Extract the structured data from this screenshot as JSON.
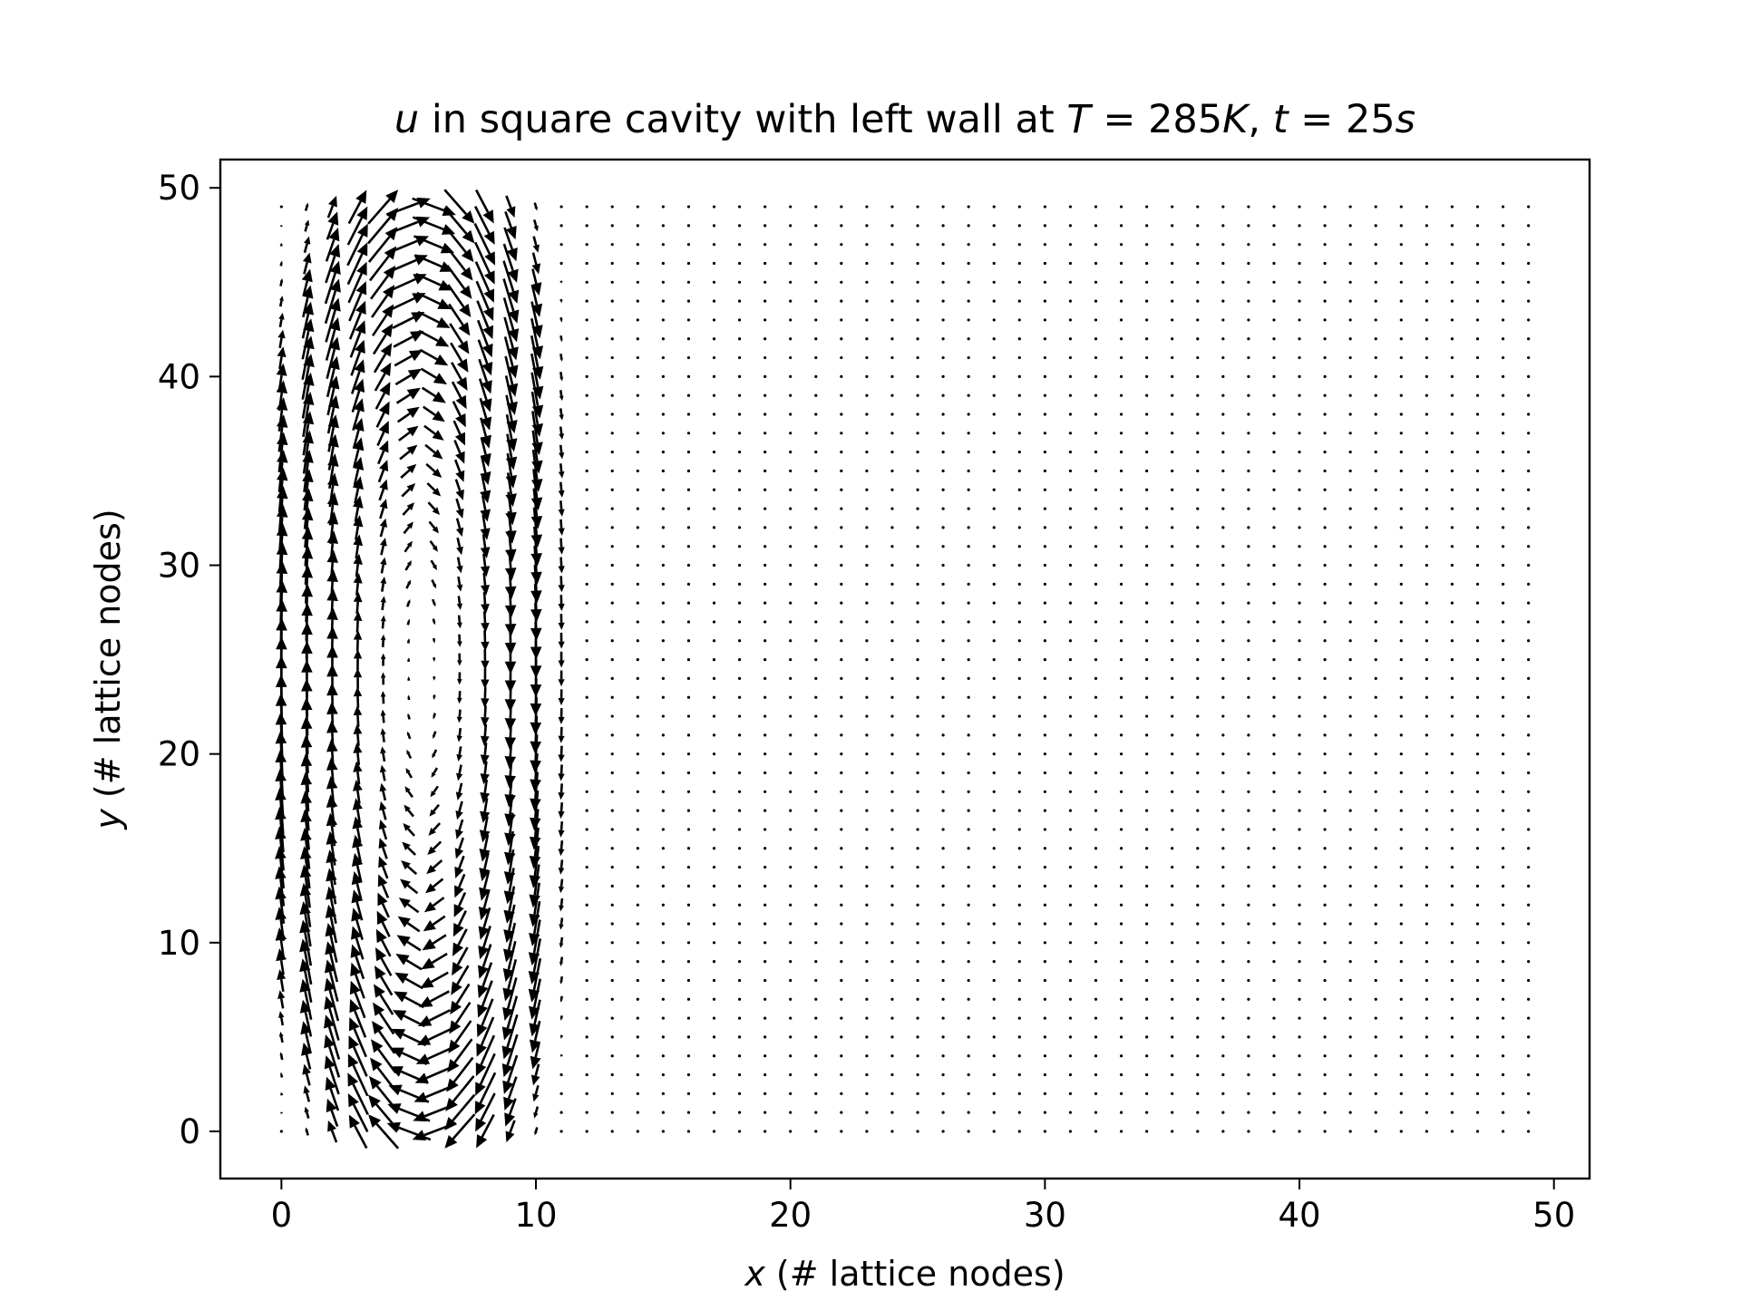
{
  "chart_data": {
    "type": "quiver",
    "title": {
      "parts": [
        {
          "text": "u",
          "italic": true
        },
        {
          "text": " in square cavity with left wall at ",
          "italic": false
        },
        {
          "text": "T",
          "italic": true
        },
        {
          "text": " = 285",
          "italic": false
        },
        {
          "text": "K",
          "italic": true
        },
        {
          "text": ", ",
          "italic": false
        },
        {
          "text": "t",
          "italic": true
        },
        {
          "text": " = 25",
          "italic": false
        },
        {
          "text": "s",
          "italic": true
        }
      ]
    },
    "xlabel": {
      "var": "x",
      "text": " (# lattice nodes)"
    },
    "ylabel": {
      "var": "y",
      "text": " (# lattice nodes)"
    },
    "xlim": [
      -2.4,
      51.4
    ],
    "ylim": [
      -2.5,
      51.5
    ],
    "xticks": [
      0,
      10,
      20,
      30,
      40,
      50
    ],
    "yticks": [
      0,
      10,
      20,
      30,
      40,
      50
    ],
    "grid": {
      "nx": 50,
      "ny": 50,
      "x0": 0,
      "y0": 0,
      "step": 1
    },
    "vortex": {
      "active_x_range": [
        0,
        11
      ],
      "center": [
        5.5,
        24.5
      ],
      "half_width": 5.8,
      "half_height": 25.0,
      "rotation": "clockwise",
      "max_arrow_length": 1.9
    },
    "grid_on": false,
    "colors": {
      "arrows": "#000000",
      "axes": "#000000",
      "background": "#ffffff"
    }
  }
}
